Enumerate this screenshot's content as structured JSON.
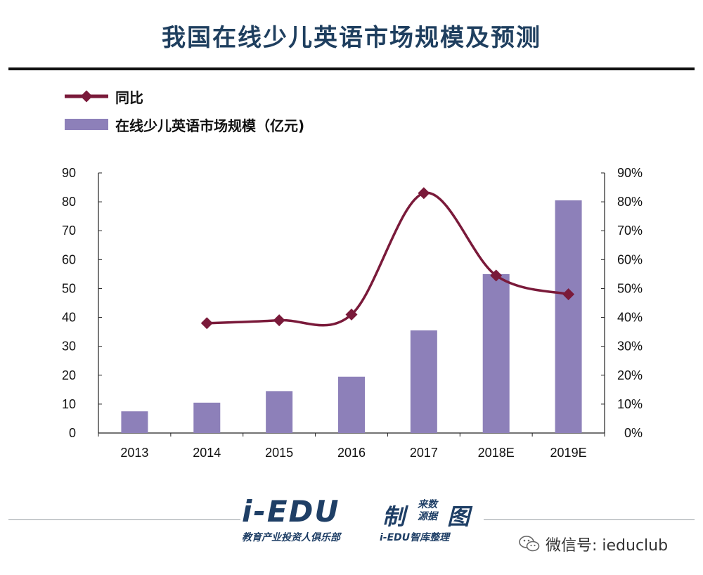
{
  "header": {
    "title": "我国在线少儿英语市场规模及预测"
  },
  "legend": {
    "line_label": "同比",
    "bar_label": "在线少儿英语市场规模（亿元)"
  },
  "chart_data": {
    "type": "bar",
    "categories": [
      "2013",
      "2014",
      "2015",
      "2016",
      "2017",
      "2018E",
      "2019E"
    ],
    "series": [
      {
        "name": "在线少儿英语市场规模（亿元)",
        "type": "bar",
        "axis": "left",
        "values": [
          7.5,
          10.5,
          14.5,
          19.5,
          35.5,
          55,
          80.5
        ]
      },
      {
        "name": "同比",
        "type": "line",
        "axis": "right",
        "unit": "%",
        "values": [
          null,
          38,
          39,
          41,
          83,
          54.5,
          48
        ]
      }
    ],
    "ylim": [
      0,
      90
    ],
    "y2lim": [
      0,
      90
    ],
    "yticks": [
      "0",
      "10",
      "20",
      "30",
      "40",
      "50",
      "60",
      "70",
      "80",
      "90"
    ],
    "y2ticks": [
      "0%",
      "10%",
      "20%",
      "30%",
      "40%",
      "50%",
      "60%",
      "70%",
      "80%",
      "90%"
    ],
    "grid": false,
    "legend_position": "top-left",
    "colors": {
      "bar": "#8d80b9",
      "line": "#7a1a3a"
    }
  },
  "footer": {
    "logo_main": "i-EDU",
    "logo_zhi": "制",
    "logo_source": "来数源据",
    "logo_tu": "图",
    "logo_sub_left": "教育产业投资人俱乐部",
    "logo_sub_right": "i-EDU智库整理",
    "wechat_icon": "wechat-icon",
    "wechat_text": "微信号: ieduclub"
  }
}
